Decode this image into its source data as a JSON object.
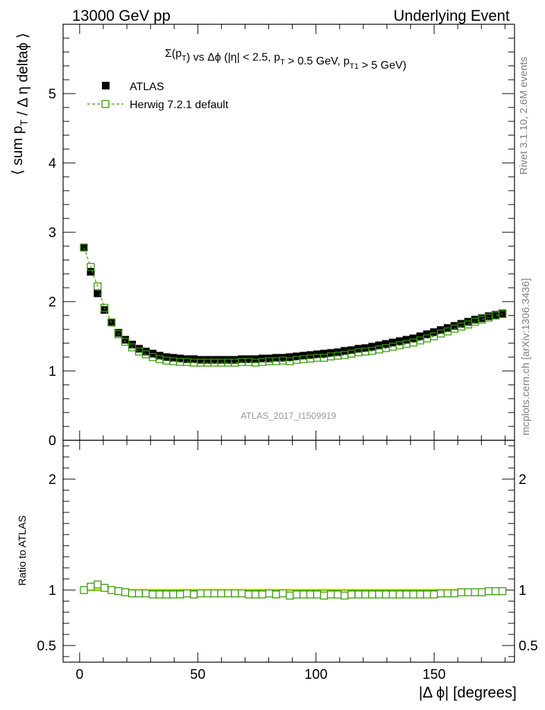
{
  "header": {
    "left": "13000 GeV pp",
    "right": "Underlying Event"
  },
  "side_labels": {
    "rivet": "Rivet 3.1.10,  2.6M events",
    "mcplots": "mcplots.cern.ch [arXiv:1306.3436]"
  },
  "watermark": "ATLAS_2017_I1509919",
  "chart_data": [
    {
      "type": "scatter",
      "title": "Σ(p_T) vs Δϕ (|η| < 2.5, p_T > 0.5 GeV, p_T1 > 5 GeV)",
      "ylabel": "⟨ sum p_T / Δ η deltaϕ ⟩",
      "xlim": [
        -7,
        184
      ],
      "ylim": [
        0,
        6
      ],
      "yticks": [
        "0",
        "1",
        "2",
        "3",
        "4",
        "5"
      ],
      "legend_position": "top-left",
      "x": [
        1.8,
        4.7,
        7.6,
        10.5,
        13.5,
        16.4,
        19.3,
        22.2,
        25.1,
        28.0,
        30.9,
        33.8,
        36.7,
        39.6,
        42.5,
        45.4,
        48.3,
        51.2,
        54.1,
        57.0,
        59.9,
        62.8,
        65.7,
        68.6,
        71.5,
        74.4,
        77.3,
        80.2,
        83.1,
        86.0,
        88.9,
        91.8,
        94.7,
        97.6,
        100.5,
        103.4,
        106.3,
        109.2,
        112.1,
        115.0,
        118.0,
        120.9,
        123.8,
        126.7,
        129.6,
        132.5,
        135.4,
        138.3,
        141.2,
        144.1,
        147.0,
        149.9,
        152.8,
        155.7,
        158.6,
        161.5,
        164.4,
        167.3,
        170.2,
        173.1,
        176.0,
        178.9
      ],
      "series": [
        {
          "name": "ATLAS",
          "color": "#000000",
          "marker": "filled-square",
          "values": [
            2.78,
            2.43,
            2.12,
            1.88,
            1.7,
            1.55,
            1.45,
            1.38,
            1.32,
            1.28,
            1.25,
            1.22,
            1.2,
            1.19,
            1.18,
            1.17,
            1.17,
            1.16,
            1.16,
            1.16,
            1.16,
            1.16,
            1.16,
            1.17,
            1.17,
            1.17,
            1.18,
            1.18,
            1.19,
            1.19,
            1.2,
            1.21,
            1.22,
            1.23,
            1.24,
            1.25,
            1.26,
            1.27,
            1.29,
            1.3,
            1.32,
            1.33,
            1.35,
            1.37,
            1.39,
            1.41,
            1.43,
            1.45,
            1.47,
            1.5,
            1.53,
            1.56,
            1.59,
            1.62,
            1.65,
            1.68,
            1.71,
            1.74,
            1.76,
            1.79,
            1.81,
            1.83
          ]
        },
        {
          "name": "Herwig 7.2.1 default",
          "color": "#339900",
          "marker": "open-square",
          "line": "dashed",
          "values": [
            2.78,
            2.5,
            2.22,
            1.91,
            1.7,
            1.53,
            1.42,
            1.34,
            1.28,
            1.24,
            1.2,
            1.17,
            1.15,
            1.14,
            1.13,
            1.13,
            1.12,
            1.12,
            1.12,
            1.12,
            1.12,
            1.12,
            1.12,
            1.13,
            1.13,
            1.12,
            1.13,
            1.14,
            1.14,
            1.15,
            1.14,
            1.16,
            1.17,
            1.18,
            1.19,
            1.19,
            1.21,
            1.22,
            1.23,
            1.25,
            1.27,
            1.28,
            1.29,
            1.31,
            1.33,
            1.35,
            1.37,
            1.39,
            1.41,
            1.44,
            1.47,
            1.5,
            1.54,
            1.57,
            1.61,
            1.64,
            1.67,
            1.71,
            1.74,
            1.77,
            1.8,
            1.82
          ]
        }
      ]
    },
    {
      "type": "scatter",
      "xlabel": "|Δ ϕ| [degrees]",
      "ylabel": "Ratio to ATLAS",
      "xlim": [
        -7,
        184
      ],
      "xticks": [
        "0",
        "50",
        "100",
        "150"
      ],
      "ylim": [
        0.35,
        2.35
      ],
      "yticks": [
        "0.5",
        "1",
        "2"
      ],
      "uncertainty_band": {
        "color": "#ffff66",
        "lower": 0.985,
        "upper": 1.015
      },
      "series": [
        {
          "name": "ATLAS",
          "color": "#339900",
          "line": "solid",
          "values": [
            1.0
          ]
        },
        {
          "name": "Herwig 7.2.1 default",
          "color": "#339900",
          "marker": "open-square",
          "line": "dashed",
          "values": [
            1.0,
            1.03,
            1.05,
            1.02,
            1.0,
            0.99,
            0.98,
            0.97,
            0.97,
            0.97,
            0.96,
            0.96,
            0.96,
            0.96,
            0.96,
            0.97,
            0.96,
            0.97,
            0.97,
            0.97,
            0.97,
            0.97,
            0.97,
            0.97,
            0.96,
            0.96,
            0.96,
            0.97,
            0.96,
            0.97,
            0.95,
            0.96,
            0.96,
            0.96,
            0.96,
            0.95,
            0.96,
            0.96,
            0.95,
            0.96,
            0.96,
            0.96,
            0.96,
            0.96,
            0.96,
            0.96,
            0.96,
            0.96,
            0.96,
            0.96,
            0.96,
            0.96,
            0.97,
            0.97,
            0.97,
            0.98,
            0.98,
            0.98,
            0.98,
            0.99,
            0.99,
            0.99
          ]
        }
      ]
    }
  ]
}
